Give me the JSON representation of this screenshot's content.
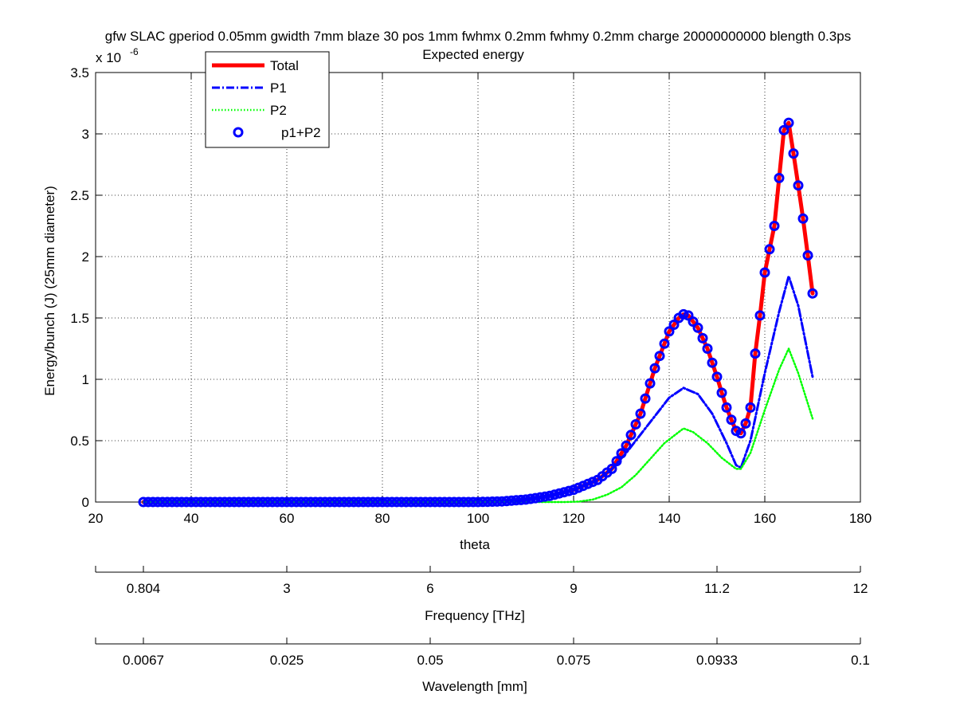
{
  "chart_data": {
    "type": "line",
    "title": "gfw SLAC gperiod 0.05mm gwidth 7mm blaze 30 pos 1mm fwhmx 0.2mm fwhmy 0.2mm charge 20000000000 blength 0.3ps",
    "subtitle": "Expected energy",
    "xlabel": "theta",
    "ylabel": "Energy/bunch (J) (25mm diameter)",
    "y_exponent_base": "x 10",
    "y_exponent_power": "-6",
    "xlim": [
      20,
      180
    ],
    "ylim": [
      0,
      3.5
    ],
    "x_ticks": [
      20,
      40,
      60,
      80,
      100,
      120,
      140,
      160,
      180
    ],
    "y_ticks": [
      0,
      0.5,
      1,
      1.5,
      2,
      2.5,
      3,
      3.5
    ],
    "x_tick_labels": [
      "20",
      "40",
      "60",
      "80",
      "100",
      "120",
      "140",
      "160",
      "180"
    ],
    "y_tick_labels": [
      "0",
      "0.5",
      "1",
      "1.5",
      "2",
      "2.5",
      "3",
      "3.5"
    ],
    "grid": true,
    "legend_position": "top-left",
    "series": [
      {
        "name": "Total",
        "style": "solid",
        "color": "#ff0000",
        "points": [
          [
            30,
            0
          ],
          [
            100,
            0
          ],
          [
            105,
            0.005
          ],
          [
            110,
            0.02
          ],
          [
            115,
            0.05
          ],
          [
            120,
            0.1
          ],
          [
            125,
            0.18
          ],
          [
            128,
            0.27
          ],
          [
            131,
            0.46
          ],
          [
            134,
            0.72
          ],
          [
            137,
            1.09
          ],
          [
            140,
            1.39
          ],
          [
            142,
            1.5
          ],
          [
            143,
            1.53
          ],
          [
            144,
            1.52
          ],
          [
            146,
            1.42
          ],
          [
            148,
            1.25
          ],
          [
            150,
            1.02
          ],
          [
            151,
            0.89
          ],
          [
            152,
            0.77
          ],
          [
            153,
            0.67
          ],
          [
            154,
            0.58
          ],
          [
            155,
            0.56
          ],
          [
            156,
            0.64
          ],
          [
            157,
            0.77
          ],
          [
            158,
            1.21
          ],
          [
            159,
            1.52
          ],
          [
            160,
            1.87
          ],
          [
            162,
            2.25
          ],
          [
            163,
            2.64
          ],
          [
            164,
            3.03
          ],
          [
            165,
            3.09
          ],
          [
            166,
            2.84
          ],
          [
            167,
            2.58
          ],
          [
            168,
            2.31
          ],
          [
            169,
            2.01
          ],
          [
            170,
            1.7
          ]
        ]
      },
      {
        "name": "P1",
        "style": "dashdot",
        "color": "#0000ff",
        "points": [
          [
            30,
            0
          ],
          [
            100,
            0
          ],
          [
            105,
            0.005
          ],
          [
            110,
            0.02
          ],
          [
            115,
            0.05
          ],
          [
            120,
            0.1
          ],
          [
            125,
            0.18
          ],
          [
            128,
            0.27
          ],
          [
            131,
            0.4
          ],
          [
            134,
            0.55
          ],
          [
            137,
            0.7
          ],
          [
            140,
            0.85
          ],
          [
            143,
            0.93
          ],
          [
            146,
            0.88
          ],
          [
            149,
            0.72
          ],
          [
            152,
            0.48
          ],
          [
            154,
            0.3
          ],
          [
            155,
            0.28
          ],
          [
            157,
            0.5
          ],
          [
            160,
            1.05
          ],
          [
            163,
            1.55
          ],
          [
            165,
            1.84
          ],
          [
            167,
            1.6
          ],
          [
            170,
            1.02
          ]
        ]
      },
      {
        "name": "P2",
        "style": "dotted",
        "color": "#00ff00",
        "points": [
          [
            30,
            0
          ],
          [
            118,
            0
          ],
          [
            121,
            0.003
          ],
          [
            124,
            0.02
          ],
          [
            127,
            0.06
          ],
          [
            130,
            0.12
          ],
          [
            133,
            0.22
          ],
          [
            136,
            0.35
          ],
          [
            139,
            0.48
          ],
          [
            142,
            0.57
          ],
          [
            143,
            0.6
          ],
          [
            145,
            0.57
          ],
          [
            148,
            0.48
          ],
          [
            151,
            0.36
          ],
          [
            154,
            0.27
          ],
          [
            155,
            0.27
          ],
          [
            157,
            0.4
          ],
          [
            160,
            0.75
          ],
          [
            163,
            1.08
          ],
          [
            165,
            1.25
          ],
          [
            167,
            1.05
          ],
          [
            170,
            0.68
          ]
        ]
      },
      {
        "name": "p1+P2",
        "style": "markers",
        "color": "#0000ff",
        "marker": "circle",
        "sample_x": {
          "start": 30,
          "end": 170,
          "step": 1
        },
        "points": [
          [
            30,
            0
          ],
          [
            100,
            0
          ],
          [
            105,
            0.005
          ],
          [
            110,
            0.02
          ],
          [
            115,
            0.05
          ],
          [
            120,
            0.1
          ],
          [
            125,
            0.18
          ],
          [
            128,
            0.27
          ],
          [
            131,
            0.46
          ],
          [
            134,
            0.72
          ],
          [
            137,
            1.09
          ],
          [
            140,
            1.39
          ],
          [
            142,
            1.5
          ],
          [
            143,
            1.53
          ],
          [
            144,
            1.52
          ],
          [
            146,
            1.42
          ],
          [
            148,
            1.25
          ],
          [
            150,
            1.02
          ],
          [
            151,
            0.89
          ],
          [
            152,
            0.77
          ],
          [
            153,
            0.67
          ],
          [
            154,
            0.58
          ],
          [
            155,
            0.56
          ],
          [
            156,
            0.64
          ],
          [
            157,
            0.77
          ],
          [
            158,
            1.21
          ],
          [
            159,
            1.52
          ],
          [
            160,
            1.87
          ],
          [
            162,
            2.25
          ],
          [
            163,
            2.64
          ],
          [
            164,
            3.03
          ],
          [
            165,
            3.09
          ],
          [
            166,
            2.84
          ],
          [
            167,
            2.58
          ],
          [
            168,
            2.31
          ],
          [
            169,
            2.01
          ],
          [
            170,
            1.7
          ]
        ]
      }
    ],
    "secondary_axes": [
      {
        "name": "frequency",
        "label": "Frequency [THz]",
        "tick_theta": [
          20,
          30,
          60,
          90,
          120,
          150,
          180
        ],
        "tick_labels": [
          "",
          "0.804",
          "3",
          "6",
          "9",
          "11.2",
          "12"
        ]
      },
      {
        "name": "wavelength",
        "label": "Wavelength [mm]",
        "tick_theta": [
          20,
          30,
          60,
          90,
          120,
          150,
          180
        ],
        "tick_labels": [
          "",
          "0.0067",
          "0.025",
          "0.05",
          "0.075",
          "0.0933",
          "0.1"
        ]
      }
    ]
  }
}
